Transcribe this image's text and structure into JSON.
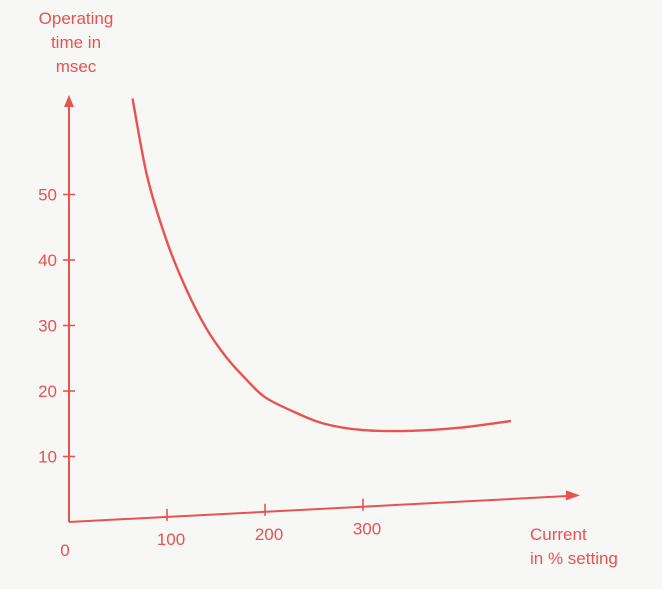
{
  "chart_data": {
    "type": "line",
    "ylabel_lines": [
      "Operating",
      "time in",
      "msec"
    ],
    "xlabel_lines": [
      "Current",
      "in % setting"
    ],
    "x_origin_label": "0",
    "x_ticks": [
      100,
      200,
      300
    ],
    "x_tick_labels": [
      "100",
      "200",
      "300"
    ],
    "y_ticks": [
      10,
      20,
      30,
      40,
      50
    ],
    "y_tick_labels": [
      "10",
      "20",
      "30",
      "40",
      "50"
    ],
    "xlim": [
      0,
      520
    ],
    "ylim": [
      0,
      72
    ],
    "grid": false,
    "series": [
      {
        "x": [
          65,
          80,
          100,
          120,
          140,
          160,
          180,
          200,
          230,
          260,
          300,
          350,
          400,
          450
        ],
        "y": [
          64,
          52,
          42,
          34.5,
          28.5,
          24,
          20.5,
          17.5,
          15,
          13,
          11.7,
          11.2,
          11.3,
          11.9
        ]
      }
    ],
    "color": "#e8524f"
  }
}
